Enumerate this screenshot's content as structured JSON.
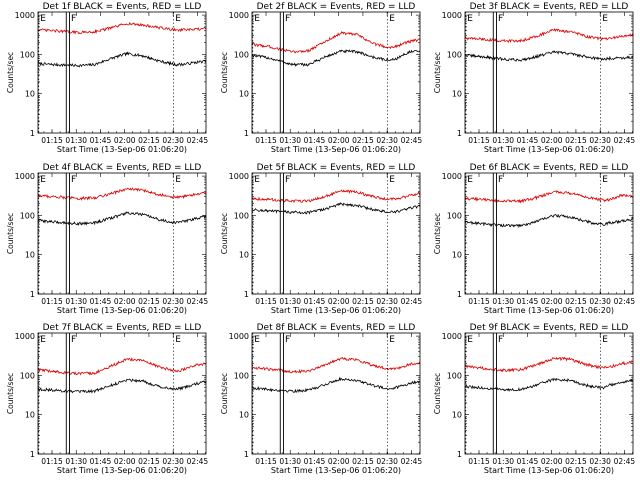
{
  "colors": {
    "events": "#000000",
    "lld": "#dd0000",
    "axis": "#000000"
  },
  "axes": {
    "ylabel": "Counts/sec",
    "xlabel": "Start Time (13-Sep-06 01:06:20)",
    "x_ticks": [
      "01:15",
      "01:30",
      "01:45",
      "02:00",
      "02:15",
      "02:30",
      "02:45"
    ],
    "x_tick_minutes": [
      8.67,
      23.67,
      38.67,
      53.67,
      68.67,
      83.67,
      98.67
    ],
    "x_range_minutes": [
      0,
      104
    ],
    "y_ticks": [
      "1",
      "10",
      "100",
      "1000"
    ],
    "y_tick_values": [
      1,
      10,
      100,
      1000
    ],
    "y_range": [
      1,
      1200
    ],
    "y_scale": "log"
  },
  "markers": {
    "E": "E",
    "F": "F",
    "E_minutes": 0.5,
    "F_left_minutes": 17.5,
    "F_right_minutes": 19.5,
    "right_E_minutes": 84.0
  },
  "chart_data": [
    {
      "type": "line",
      "title": "Det 1f BLACK = Events, RED = LLD",
      "series": [
        {
          "key": "events",
          "anchors": [
            [
              0,
              58
            ],
            [
              10,
              55
            ],
            [
              25,
              52
            ],
            [
              35,
              55
            ],
            [
              45,
              78
            ],
            [
              55,
              105
            ],
            [
              65,
              92
            ],
            [
              75,
              68
            ],
            [
              85,
              55
            ],
            [
              90,
              56
            ],
            [
              97,
              62
            ],
            [
              104,
              68
            ]
          ]
        },
        {
          "key": "lld",
          "anchors": [
            [
              0,
              420
            ],
            [
              10,
              400
            ],
            [
              25,
              360
            ],
            [
              35,
              380
            ],
            [
              45,
              470
            ],
            [
              55,
              610
            ],
            [
              65,
              560
            ],
            [
              75,
              480
            ],
            [
              85,
              420
            ],
            [
              90,
              420
            ],
            [
              97,
              430
            ],
            [
              104,
              450
            ]
          ]
        }
      ]
    },
    {
      "type": "line",
      "title": "Det 2f BLACK = Events, RED = LLD",
      "series": [
        {
          "key": "events",
          "anchors": [
            [
              0,
              95
            ],
            [
              10,
              82
            ],
            [
              25,
              55
            ],
            [
              35,
              55
            ],
            [
              45,
              85
            ],
            [
              55,
              120
            ],
            [
              65,
              118
            ],
            [
              75,
              85
            ],
            [
              85,
              70
            ],
            [
              90,
              80
            ],
            [
              97,
              115
            ],
            [
              104,
              120
            ]
          ]
        },
        {
          "key": "lld",
          "anchors": [
            [
              0,
              180
            ],
            [
              10,
              160
            ],
            [
              25,
              115
            ],
            [
              35,
              125
            ],
            [
              45,
              210
            ],
            [
              55,
              350
            ],
            [
              65,
              320
            ],
            [
              75,
              190
            ],
            [
              85,
              150
            ],
            [
              90,
              165
            ],
            [
              97,
              210
            ],
            [
              104,
              240
            ]
          ]
        }
      ]
    },
    {
      "type": "line",
      "title": "Det 3f BLACK = Events, RED = LLD",
      "series": [
        {
          "key": "events",
          "anchors": [
            [
              0,
              95
            ],
            [
              10,
              88
            ],
            [
              25,
              75
            ],
            [
              35,
              72
            ],
            [
              45,
              90
            ],
            [
              55,
              115
            ],
            [
              65,
              105
            ],
            [
              75,
              88
            ],
            [
              85,
              75
            ],
            [
              90,
              80
            ],
            [
              97,
              82
            ],
            [
              104,
              85
            ]
          ]
        },
        {
          "key": "lld",
          "anchors": [
            [
              0,
              260
            ],
            [
              10,
              245
            ],
            [
              25,
              220
            ],
            [
              35,
              225
            ],
            [
              45,
              300
            ],
            [
              55,
              420
            ],
            [
              65,
              380
            ],
            [
              75,
              290
            ],
            [
              85,
              245
            ],
            [
              90,
              255
            ],
            [
              97,
              290
            ],
            [
              104,
              310
            ]
          ]
        }
      ]
    },
    {
      "type": "line",
      "title": "Det 4f BLACK = Events, RED = LLD",
      "series": [
        {
          "key": "events",
          "anchors": [
            [
              0,
              75
            ],
            [
              10,
              68
            ],
            [
              25,
              62
            ],
            [
              35,
              65
            ],
            [
              45,
              85
            ],
            [
              55,
              115
            ],
            [
              65,
              105
            ],
            [
              75,
              78
            ],
            [
              85,
              65
            ],
            [
              90,
              70
            ],
            [
              97,
              82
            ],
            [
              104,
              95
            ]
          ]
        },
        {
          "key": "lld",
          "anchors": [
            [
              0,
              320
            ],
            [
              10,
              300
            ],
            [
              25,
              270
            ],
            [
              35,
              280
            ],
            [
              45,
              360
            ],
            [
              55,
              470
            ],
            [
              65,
              440
            ],
            [
              75,
              340
            ],
            [
              85,
              290
            ],
            [
              90,
              300
            ],
            [
              97,
              340
            ],
            [
              104,
              380
            ]
          ]
        }
      ]
    },
    {
      "type": "line",
      "title": "Det 5f BLACK = Events, RED = LLD",
      "series": [
        {
          "key": "events",
          "anchors": [
            [
              0,
              140
            ],
            [
              10,
              130
            ],
            [
              25,
              120
            ],
            [
              35,
              118
            ],
            [
              45,
              145
            ],
            [
              55,
              195
            ],
            [
              65,
              180
            ],
            [
              75,
              140
            ],
            [
              85,
              120
            ],
            [
              90,
              125
            ],
            [
              97,
              150
            ],
            [
              104,
              175
            ]
          ]
        },
        {
          "key": "lld",
          "anchors": [
            [
              0,
              270
            ],
            [
              10,
              255
            ],
            [
              25,
              230
            ],
            [
              35,
              235
            ],
            [
              45,
              300
            ],
            [
              55,
              420
            ],
            [
              65,
              390
            ],
            [
              75,
              300
            ],
            [
              85,
              255
            ],
            [
              90,
              265
            ],
            [
              97,
              320
            ],
            [
              104,
              370
            ]
          ]
        }
      ]
    },
    {
      "type": "line",
      "title": "Det 6f BLACK = Events, RED = LLD",
      "series": [
        {
          "key": "events",
          "anchors": [
            [
              0,
              68
            ],
            [
              10,
              62
            ],
            [
              25,
              55
            ],
            [
              35,
              55
            ],
            [
              45,
              72
            ],
            [
              55,
              100
            ],
            [
              65,
              92
            ],
            [
              75,
              70
            ],
            [
              85,
              58
            ],
            [
              90,
              65
            ],
            [
              97,
              72
            ],
            [
              104,
              80
            ]
          ]
        },
        {
          "key": "lld",
          "anchors": [
            [
              0,
              270
            ],
            [
              10,
              255
            ],
            [
              25,
              230
            ],
            [
              35,
              230
            ],
            [
              45,
              290
            ],
            [
              55,
              400
            ],
            [
              65,
              370
            ],
            [
              75,
              290
            ],
            [
              85,
              245
            ],
            [
              90,
              255
            ],
            [
              97,
              330
            ],
            [
              104,
              300
            ]
          ]
        }
      ]
    },
    {
      "type": "line",
      "title": "Det 7f BLACK = Events, RED = LLD",
      "series": [
        {
          "key": "events",
          "anchors": [
            [
              0,
              45
            ],
            [
              10,
              42
            ],
            [
              25,
              38
            ],
            [
              35,
              40
            ],
            [
              45,
              55
            ],
            [
              55,
              78
            ],
            [
              65,
              72
            ],
            [
              75,
              52
            ],
            [
              85,
              45
            ],
            [
              90,
              48
            ],
            [
              97,
              60
            ],
            [
              104,
              70
            ]
          ]
        },
        {
          "key": "lld",
          "anchors": [
            [
              0,
              140
            ],
            [
              10,
              125
            ],
            [
              25,
              110
            ],
            [
              35,
              115
            ],
            [
              45,
              170
            ],
            [
              55,
              260
            ],
            [
              65,
              240
            ],
            [
              75,
              165
            ],
            [
              85,
              130
            ],
            [
              90,
              140
            ],
            [
              97,
              180
            ],
            [
              104,
              200
            ]
          ]
        }
      ]
    },
    {
      "type": "line",
      "title": "Det 8f BLACK = Events, RED = LLD",
      "series": [
        {
          "key": "events",
          "anchors": [
            [
              0,
              48
            ],
            [
              10,
              44
            ],
            [
              25,
              40
            ],
            [
              35,
              42
            ],
            [
              45,
              58
            ],
            [
              55,
              82
            ],
            [
              65,
              75
            ],
            [
              75,
              55
            ],
            [
              85,
              46
            ],
            [
              90,
              50
            ],
            [
              97,
              62
            ],
            [
              104,
              72
            ]
          ]
        },
        {
          "key": "lld",
          "anchors": [
            [
              0,
              160
            ],
            [
              10,
              145
            ],
            [
              25,
              125
            ],
            [
              35,
              130
            ],
            [
              45,
              185
            ],
            [
              55,
              270
            ],
            [
              65,
              250
            ],
            [
              75,
              180
            ],
            [
              85,
              145
            ],
            [
              90,
              150
            ],
            [
              97,
              190
            ],
            [
              104,
              210
            ]
          ]
        }
      ]
    },
    {
      "type": "line",
      "title": "Det 9f BLACK = Events, RED = LLD",
      "series": [
        {
          "key": "events",
          "anchors": [
            [
              0,
              52
            ],
            [
              10,
              48
            ],
            [
              25,
              43
            ],
            [
              35,
              44
            ],
            [
              45,
              58
            ],
            [
              55,
              80
            ],
            [
              65,
              75
            ],
            [
              75,
              56
            ],
            [
              85,
              48
            ],
            [
              90,
              58
            ],
            [
              97,
              65
            ],
            [
              104,
              75
            ]
          ]
        },
        {
          "key": "lld",
          "anchors": [
            [
              0,
              170
            ],
            [
              10,
              155
            ],
            [
              25,
              135
            ],
            [
              35,
              140
            ],
            [
              45,
              190
            ],
            [
              55,
              270
            ],
            [
              65,
              260
            ],
            [
              75,
              190
            ],
            [
              85,
              155
            ],
            [
              90,
              165
            ],
            [
              97,
              200
            ],
            [
              104,
              220
            ]
          ]
        }
      ]
    }
  ]
}
